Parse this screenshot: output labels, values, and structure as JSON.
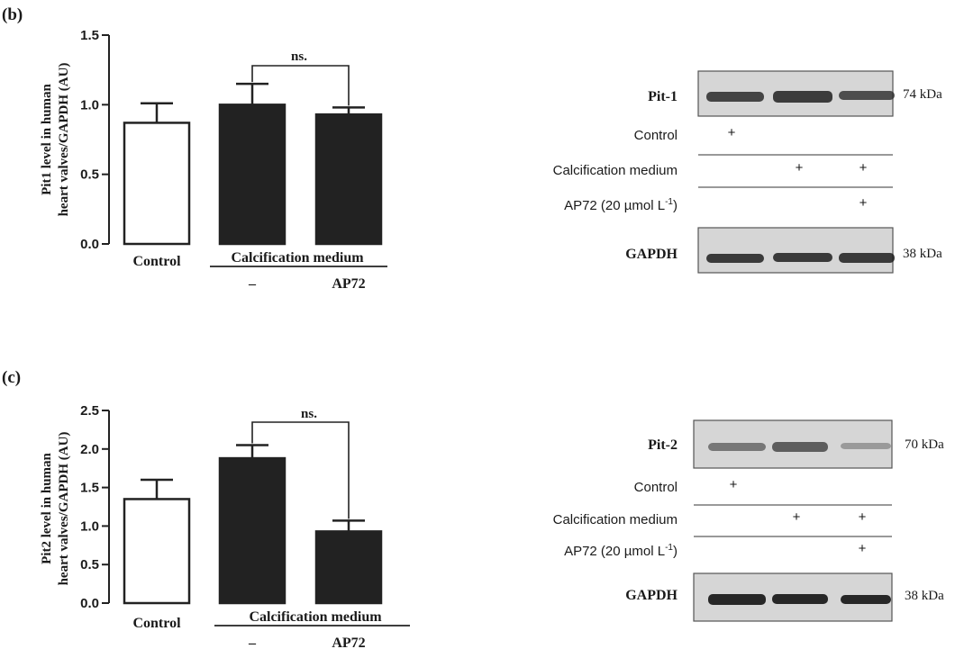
{
  "panels": [
    {
      "label": "(b)",
      "significance": "ns.",
      "group_label": "Calcification medium",
      "blot": {
        "protein_label": "Pit-1",
        "protein_kda": "74 kDa",
        "loading_label": "GAPDH",
        "loading_kda": "38 kDa",
        "condition_rows": [
          {
            "label": "Control",
            "marks": [
              "+",
              "",
              ""
            ]
          },
          {
            "label": "Calcification medium",
            "marks": [
              "",
              "+",
              "+"
            ]
          },
          {
            "label": "AP72 (20 µmol L",
            "superscript": "-1",
            "suffix": ")",
            "marks": [
              "",
              "",
              "+"
            ]
          }
        ]
      }
    },
    {
      "label": "(c)",
      "significance": "ns.",
      "group_label": "Calcification medium",
      "blot": {
        "protein_label": "Pit-2",
        "protein_kda": "70 kDa",
        "loading_label": "GAPDH",
        "loading_kda": "38 kDa",
        "condition_rows": [
          {
            "label": "Control",
            "marks": [
              "+",
              "",
              ""
            ]
          },
          {
            "label": "Calcification medium",
            "marks": [
              "",
              "+",
              "+"
            ]
          },
          {
            "label": "AP72 (20 µmol L",
            "superscript": "-1",
            "suffix": ")",
            "marks": [
              "",
              "",
              "+"
            ]
          }
        ]
      }
    }
  ],
  "chart_data": [
    {
      "type": "bar",
      "ylabel": "Pit1 level in human heart valves/GAPDH (AU)",
      "ylabel_lines": [
        "Pit1 level in human",
        "heart valves/GAPDH (AU)"
      ],
      "categories": [
        "Control",
        "–",
        "AP72"
      ],
      "values": [
        0.87,
        1.0,
        0.93
      ],
      "errors": [
        0.14,
        0.15,
        0.05
      ],
      "bar_colors": [
        "#ffffff",
        "#222222",
        "#222222"
      ],
      "ylim": [
        0,
        1.5
      ],
      "yticks": [
        0.0,
        0.5,
        1.0,
        1.5
      ],
      "ytick_labels": [
        "0.0",
        "0.5",
        "1.0",
        "1.5"
      ],
      "grid": false
    },
    {
      "type": "bar",
      "ylabel": "Pit2 level in human heart valves/GAPDH (AU)",
      "ylabel_lines": [
        "Pit2 level in human",
        "heart valves/GAPDH (AU)"
      ],
      "categories": [
        "Control",
        "–",
        "AP72"
      ],
      "values": [
        1.35,
        1.88,
        0.93
      ],
      "errors": [
        0.25,
        0.17,
        0.14
      ],
      "bar_colors": [
        "#ffffff",
        "#222222",
        "#222222"
      ],
      "ylim": [
        0,
        2.5
      ],
      "yticks": [
        0.0,
        0.5,
        1.0,
        1.5,
        2.0,
        2.5
      ],
      "ytick_labels": [
        "0.0",
        "0.5",
        "1.0",
        "1.5",
        "2.0",
        "2.5"
      ],
      "grid": false
    }
  ]
}
